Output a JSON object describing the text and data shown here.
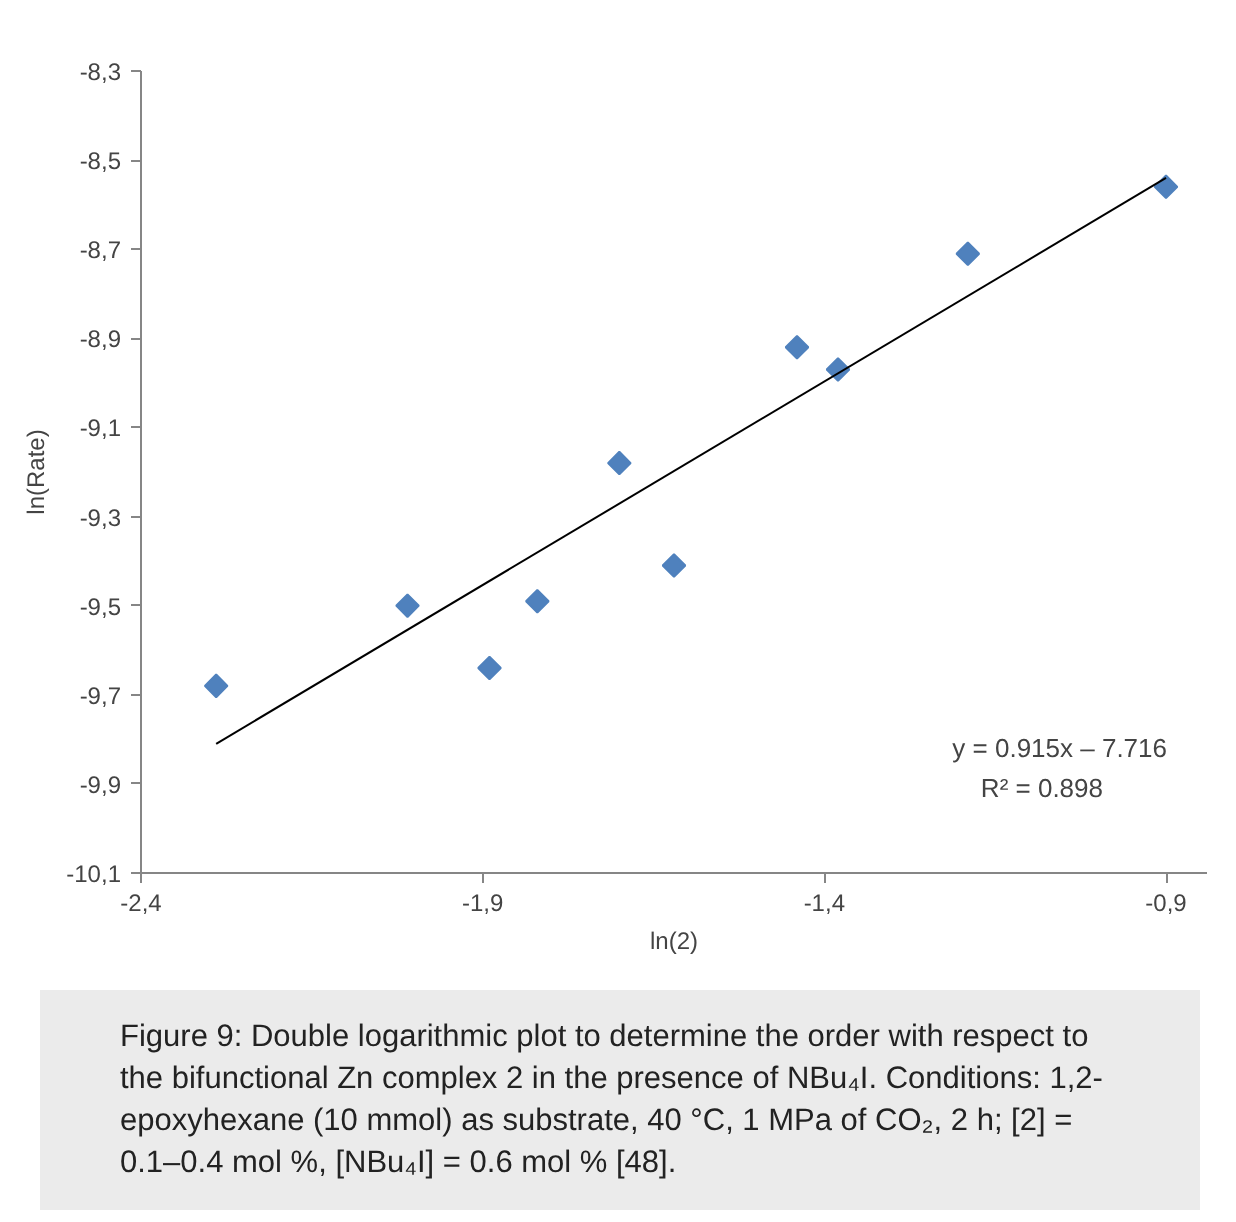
{
  "chart_data": {
    "type": "scatter",
    "xlabel": "ln(2)",
    "ylabel": "ln(Rate)",
    "xlim": [
      -2.4,
      -0.84
    ],
    "ylim": [
      -10.1,
      -8.3
    ],
    "xticks": [
      {
        "value": -2.4,
        "label": "-2,4"
      },
      {
        "value": -1.9,
        "label": "-1,9"
      },
      {
        "value": -1.4,
        "label": "-1,4"
      },
      {
        "value": -0.9,
        "label": "-0,9"
      }
    ],
    "yticks": [
      {
        "value": -10.1,
        "label": "-10,1"
      },
      {
        "value": -9.9,
        "label": "-9,9"
      },
      {
        "value": -9.7,
        "label": "-9,7"
      },
      {
        "value": -9.5,
        "label": "-9,5"
      },
      {
        "value": -9.3,
        "label": "-9,3"
      },
      {
        "value": -9.1,
        "label": "-9,1"
      },
      {
        "value": -8.9,
        "label": "-8,9"
      },
      {
        "value": -8.7,
        "label": "-8,7"
      },
      {
        "value": -8.5,
        "label": "-8,5"
      },
      {
        "value": -8.3,
        "label": "-8,3"
      }
    ],
    "grid": false,
    "marker": "diamond",
    "series": [
      {
        "color": "#4f81bd",
        "x": [
          -2.29,
          -2.01,
          -1.89,
          -1.82,
          -1.7,
          -1.62,
          -1.44,
          -1.38,
          -1.19,
          -0.9
        ],
        "values": [
          -9.68,
          -9.5,
          -9.64,
          -9.49,
          -9.18,
          -9.41,
          -8.92,
          -8.97,
          -8.71,
          -8.56
        ]
      },
      {
        "type": "line",
        "color": "#000000",
        "marker": "none",
        "line_style": "solid",
        "x": [
          -2.29,
          -0.9
        ],
        "values": [
          -9.81,
          -8.54
        ]
      }
    ],
    "annotations": [
      "y = 0.915x – 7.716",
      "R² = 0.898",
      "Figure 9: Double logarithmic plot to determine the order with respect to the bifunctional Zn complex 2 in the presence of NBu₄I. Conditions: 1,2-epoxyhexane (10 mmol) as substrate, 40 °C, 1 MPa of CO₂, 2 h; [2] = 0.1–0.4 mol %, [NBu₄I] = 0.6 mol % [48]."
    ]
  }
}
